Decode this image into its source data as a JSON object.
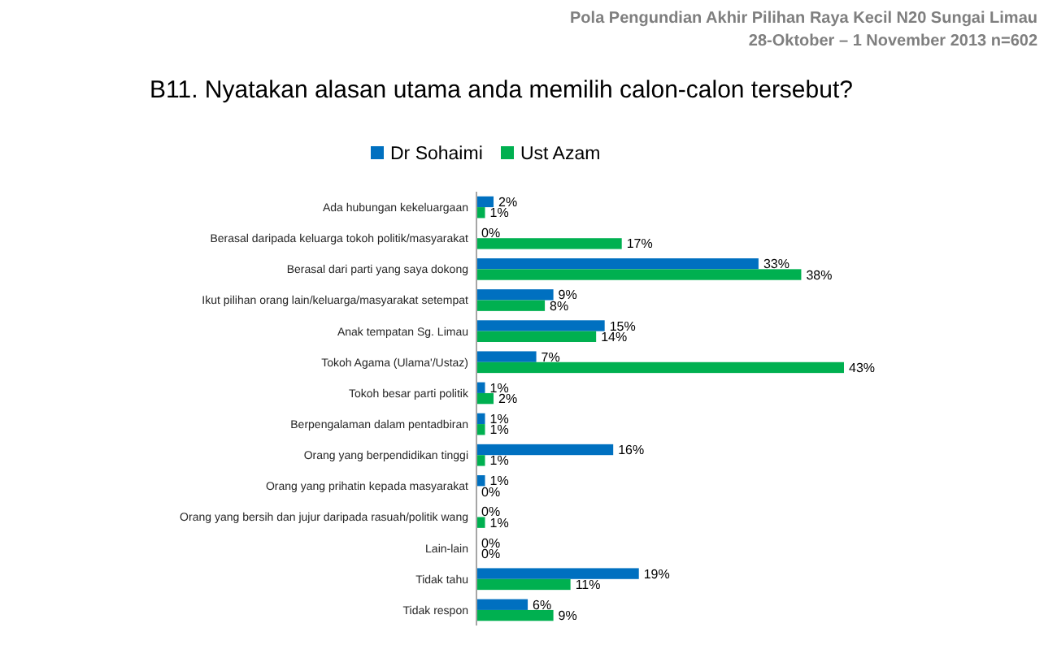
{
  "chart_data": {
    "type": "bar",
    "orientation": "horizontal",
    "title": "B11. Nyatakan alasan utama anda memilih calon-calon tersebut?",
    "annotations": [
      "Pola Pengundian Akhir Pilihan Raya Kecil N20 Sungai Limau",
      "28-Oktober – 1 November 2013   n=602"
    ],
    "categories": [
      "Ada hubungan kekeluargaan",
      "Berasal daripada keluarga tokoh politik/masyarakat",
      "Berasal dari parti yang saya dokong",
      "Ikut pilihan orang lain/keluarga/masyarakat setempat",
      "Anak tempatan Sg. Limau",
      "Tokoh Agama (Ulama'/Ustaz)",
      "Tokoh besar parti politik",
      "Berpengalaman dalam pentadbiran",
      "Orang yang berpendidikan tinggi",
      "Orang yang prihatin kepada masyarakat",
      "Orang yang bersih dan jujur daripada rasuah/politik wang",
      "Lain-lain",
      "Tidak tahu",
      "Tidak respon"
    ],
    "series": [
      {
        "name": "Dr Sohaimi",
        "color": "#0070c0",
        "values": [
          2,
          0,
          33,
          9,
          15,
          7,
          1,
          1,
          16,
          1,
          0,
          0,
          19,
          6
        ],
        "value_labels": [
          "2%",
          "0%",
          "33%",
          "9%",
          "15%",
          "7%",
          "1%",
          "1%",
          "16%",
          "1%",
          "0%",
          "0%",
          "19%",
          "6%"
        ]
      },
      {
        "name": "Ust Azam",
        "color": "#00b050",
        "values": [
          1,
          17,
          38,
          8,
          14,
          43,
          2,
          1,
          1,
          0,
          1,
          0,
          11,
          9
        ],
        "value_labels": [
          "1%",
          "17%",
          "38%",
          "8%",
          "14%",
          "43%",
          "2%",
          "1%",
          "1%",
          "0%",
          "1%",
          "0%",
          "11%",
          "9%"
        ]
      }
    ],
    "tick_labels": "y",
    "legend": "top"
  }
}
